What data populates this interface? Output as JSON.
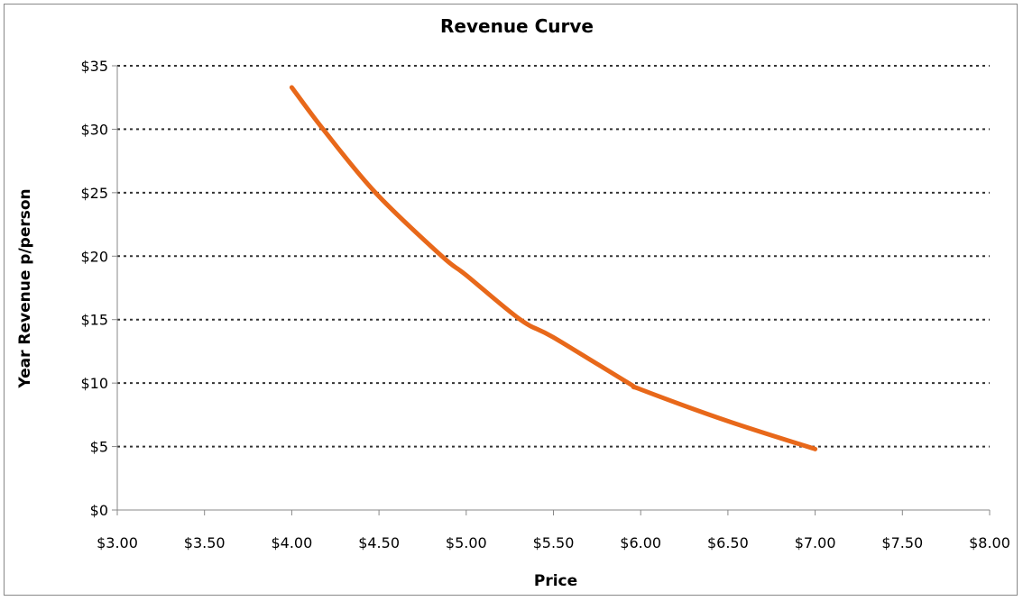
{
  "chart_data": {
    "type": "line",
    "title": "Revenue Curve",
    "xlabel": "Price",
    "ylabel": "Year Revenue p/person",
    "xlim": [
      3.0,
      8.0
    ],
    "ylim": [
      0,
      35
    ],
    "x_ticks": [
      3.0,
      3.5,
      4.0,
      4.5,
      5.0,
      5.5,
      6.0,
      6.5,
      7.0,
      7.5,
      8.0
    ],
    "x_tick_labels": [
      "$3.00",
      "$3.50",
      "$4.00",
      "$4.50",
      "$5.00",
      "$5.50",
      "$6.00",
      "$6.50",
      "$7.00",
      "$7.50",
      "$8.00"
    ],
    "y_ticks": [
      0,
      5,
      10,
      15,
      20,
      25,
      30,
      35
    ],
    "y_tick_labels": [
      "$0",
      "$5",
      "$10",
      "$15",
      "$20",
      "$25",
      "$30",
      "$35"
    ],
    "grid": "horizontal dotted",
    "legend": "none",
    "series": [
      {
        "name": "Revenue",
        "color": "#E8681A",
        "x": [
          4.0,
          4.18,
          4.48,
          4.86,
          5.0,
          5.31,
          5.5,
          5.93,
          6.0,
          6.5,
          7.0
        ],
        "y": [
          33.3,
          30.0,
          25.0,
          20.0,
          18.5,
          15.0,
          13.6,
          10.0,
          9.5,
          7.0,
          4.8
        ]
      }
    ]
  }
}
